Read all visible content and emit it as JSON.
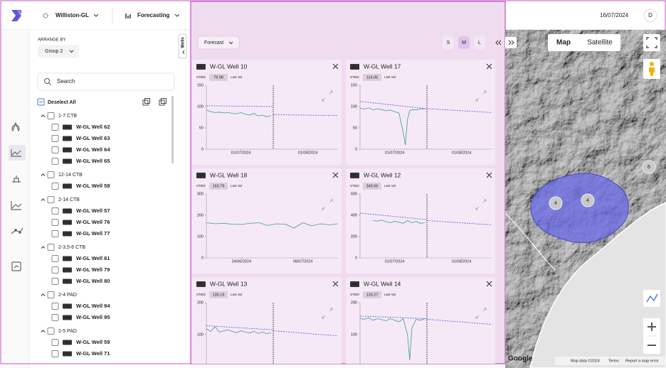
{
  "top_bar": {
    "project": "Williston-GL",
    "module": "Forecasting",
    "date": "16/07/2024",
    "user": "D"
  },
  "sidebar": {
    "arrange_label": "ARRANGE BY",
    "arrange_value": "Group 2",
    "search_placeholder": "Search",
    "deselect": "Deselect All",
    "badge": "GL",
    "groups": [
      {
        "name": "1-7 CTB",
        "wells": [
          "W-GL Well 62",
          "W-GL Well 63",
          "W-GL Well 64",
          "W-GL Well 65"
        ]
      },
      {
        "name": "12-14 CTB",
        "wells": [
          "W-GL Well 58"
        ]
      },
      {
        "name": "2-14 CTB",
        "wells": [
          "W-GL Well 57",
          "W-GL Well 76",
          "W-GL Well 77"
        ]
      },
      {
        "name": "2-3,5-6 CTB",
        "wells": [
          "W-GL Well 61",
          "W-GL Well 79",
          "W-GL Well 80"
        ]
      },
      {
        "name": "2-4 PAD",
        "wells": [
          "W-GL Well 94",
          "W-GL Well 95"
        ]
      },
      {
        "name": "2-5 PAD",
        "wells": [
          "W-GL Well 59",
          "W-GL Well 71"
        ]
      }
    ]
  },
  "wells_tab": "Wells",
  "toolbar": {
    "mode": "Forecast",
    "sizes": [
      "S",
      "M",
      "L"
    ],
    "active_size": "M"
  },
  "cards": [
    {
      "badge": "GL",
      "title": "W-GL Well 10",
      "unit": "STB/d",
      "last_value": 79.98,
      "last_label": "Last Val",
      "ylim": [
        0,
        150
      ],
      "yticks": [
        0,
        50,
        100,
        150
      ],
      "xlim": [
        0,
        61
      ],
      "xticks": [
        {
          "value": 16,
          "label": "01/07/2024"
        },
        {
          "value": 47,
          "label": "01/08/2024"
        }
      ],
      "today": 31,
      "actual": {
        "x": [
          0,
          2,
          4,
          6,
          8,
          10,
          12,
          14,
          16,
          18,
          20,
          22,
          24,
          26,
          28,
          30
        ],
        "values": [
          92,
          88,
          86,
          87,
          85,
          86,
          84,
          83,
          86,
          82,
          80,
          84,
          78,
          80,
          76,
          79
        ]
      },
      "fit": {
        "x": [
          0,
          31
        ],
        "values": [
          102,
          100
        ]
      },
      "forecast": {
        "x": [
          31,
          61
        ],
        "values": [
          81,
          79
        ]
      }
    },
    {
      "badge": "GL",
      "title": "W-GL Well 17",
      "unit": "STB/d",
      "last_value": 114.05,
      "last_label": "Last Val",
      "ylim": [
        0,
        150
      ],
      "yticks": [
        0,
        50,
        100,
        150
      ],
      "xlim": [
        0,
        61
      ],
      "xticks": [
        {
          "value": 16,
          "label": "01/07/2024"
        },
        {
          "value": 47,
          "label": "01/08/2024"
        }
      ],
      "today": 31,
      "actual": {
        "x": [
          0,
          2,
          4,
          6,
          8,
          10,
          12,
          14,
          16,
          18,
          20,
          21,
          22,
          23,
          24,
          26,
          28,
          30
        ],
        "values": [
          96,
          94,
          97,
          92,
          95,
          93,
          90,
          92,
          88,
          85,
          40,
          10,
          70,
          90,
          93,
          92,
          95,
          94
        ]
      },
      "fit": {
        "x": [
          0,
          31
        ],
        "values": [
          112,
          95
        ]
      },
      "forecast": {
        "x": [
          31,
          61
        ],
        "values": [
          95,
          86
        ]
      }
    },
    {
      "badge": "GL",
      "title": "W-GL Well 18",
      "unit": "STB/d",
      "last_value": 160.79,
      "last_label": "Last Val",
      "ylim": [
        0,
        300
      ],
      "yticks": [
        0,
        100,
        200,
        300
      ],
      "xlim": [
        0,
        30
      ],
      "xticks": [
        {
          "value": 8,
          "label": "24/06/2024"
        },
        {
          "value": 22,
          "label": "08/07/2024"
        }
      ],
      "actual": {
        "x": [
          0,
          2,
          4,
          6,
          8,
          10,
          12,
          14,
          16,
          18,
          20,
          22,
          24,
          26,
          28,
          30
        ],
        "values": [
          165,
          160,
          162,
          158,
          157,
          162,
          165,
          152,
          160,
          158,
          140,
          165,
          150,
          160,
          155,
          160
        ]
      }
    },
    {
      "badge": "GL",
      "title": "W-GL Well 12",
      "unit": "STB/d",
      "last_value": 349.06,
      "last_label": "Last Val",
      "ylim": [
        0,
        600
      ],
      "yticks": [
        0,
        200,
        400,
        600
      ],
      "xlim": [
        0,
        61
      ],
      "xticks": [
        {
          "value": 16,
          "label": "01/07/2024"
        },
        {
          "value": 47,
          "label": "01/08/2024"
        }
      ],
      "today": 31,
      "actual": {
        "x": [
          6,
          8,
          10,
          12,
          14,
          16,
          18,
          20,
          22,
          24,
          26,
          28,
          30
        ],
        "values": [
          350,
          345,
          355,
          340,
          330,
          345,
          335,
          325,
          350,
          330,
          340,
          325,
          330
        ]
      },
      "fit": {
        "x": [
          0,
          31
        ],
        "values": [
          420,
          360
        ]
      },
      "forecast": {
        "x": [
          31,
          61
        ],
        "values": [
          350,
          310
        ]
      }
    },
    {
      "badge": "GL",
      "title": "W-GL Well 13",
      "unit": "STB/d",
      "last_value": 135.19,
      "last_label": "Last Val",
      "ylim": [
        0,
        200
      ],
      "yticks": [
        0,
        100,
        200
      ],
      "xlim": [
        0,
        61
      ],
      "xticks": [
        {
          "value": 16,
          "label": "01/07/2024"
        },
        {
          "value": 47,
          "label": "01/08/2024"
        }
      ],
      "today": 31,
      "actual": {
        "x": [
          0,
          2,
          4,
          6,
          8,
          10,
          12,
          14,
          16,
          18,
          20,
          22,
          24,
          26,
          28,
          30
        ],
        "values": [
          118,
          110,
          125,
          108,
          112,
          115,
          110,
          106,
          112,
          108,
          105,
          110,
          104,
          108,
          103,
          106
        ]
      },
      "fit": {
        "x": [
          0,
          31
        ],
        "values": [
          128,
          115
        ]
      },
      "forecast": {
        "x": [
          31,
          61
        ],
        "values": [
          112,
          96
        ]
      }
    },
    {
      "badge": "GL",
      "title": "W-GL Well 14",
      "unit": "STB/d",
      "last_value": 133.27,
      "last_label": "Last Val",
      "ylim": [
        0,
        200
      ],
      "yticks": [
        0,
        100,
        200
      ],
      "xlim": [
        0,
        61
      ],
      "xticks": [
        {
          "value": 16,
          "label": "01/07/2024"
        },
        {
          "value": 47,
          "label": "01/08/2024"
        }
      ],
      "today": 31,
      "actual": {
        "x": [
          0,
          2,
          4,
          6,
          8,
          10,
          12,
          14,
          16,
          18,
          20,
          22,
          23,
          24,
          26,
          28,
          30
        ],
        "values": [
          150,
          148,
          152,
          145,
          150,
          147,
          143,
          150,
          145,
          140,
          150,
          100,
          20,
          120,
          148,
          145,
          150
        ]
      },
      "fit": {
        "x": [
          0,
          31
        ],
        "values": [
          158,
          150
        ]
      },
      "forecast": {
        "x": [
          31,
          61
        ],
        "values": [
          148,
          132
        ]
      }
    }
  ],
  "map": {
    "types": [
      "Map",
      "Satellite"
    ],
    "active": "Map",
    "clusters": [
      4,
      4,
      6
    ],
    "logo": "Google",
    "attribution": [
      "Map data ©2024",
      "Terms",
      "Report a map error"
    ]
  }
}
